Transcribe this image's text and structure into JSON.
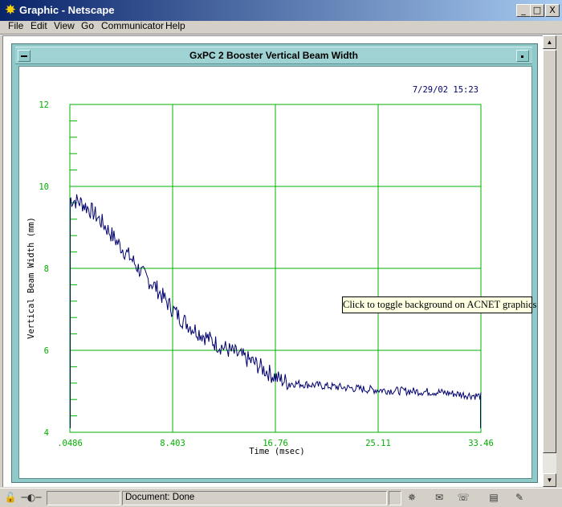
{
  "window": {
    "title": "Graphic - Netscape",
    "controls": {
      "minimize": "_",
      "maximize": "□",
      "close": "X"
    }
  },
  "menu": [
    "File",
    "Edit",
    "View",
    "Go",
    "Communicator",
    "Help"
  ],
  "graphic_window": {
    "title": "GxPC 2 Booster Vertical Beam Width",
    "timestamp": "7/29/02 15:23",
    "tooltip": "Click to toggle background on ACNET graphics"
  },
  "chart_data": {
    "type": "line",
    "title": "",
    "xlabel": "Time (msec)",
    "ylabel": "Vertical Beam Width (mm)",
    "xlim": [
      0.0486,
      33.46
    ],
    "ylim": [
      4,
      12
    ],
    "x_tick_labels": [
      ".0486",
      "8.403",
      "16.76",
      "25.11",
      "33.46"
    ],
    "y_tick_labels": [
      "12",
      "10",
      "8",
      "6",
      "4"
    ],
    "grid": true,
    "line_color": "#00006e",
    "grid_color": "#00b000",
    "series": [
      {
        "x": [
          0.0486,
          0.5,
          1.0,
          2.0,
          3.0,
          4.0,
          5.0,
          6.0,
          7.0,
          8.0,
          9.0,
          10.0,
          11.0,
          12.0,
          13.0,
          14.0,
          15.0,
          16.0,
          17.0,
          18.0,
          20.0,
          22.0,
          24.0,
          26.0,
          28.0,
          30.0,
          32.0,
          33.46
        ],
        "y": [
          9.7,
          9.65,
          9.6,
          9.35,
          9.0,
          8.6,
          8.25,
          7.85,
          7.55,
          7.15,
          6.8,
          6.55,
          6.35,
          6.15,
          6.0,
          5.85,
          5.7,
          5.5,
          5.3,
          5.2,
          5.15,
          5.1,
          5.05,
          5.02,
          5.0,
          4.98,
          4.92,
          4.88
        ]
      }
    ]
  },
  "status": {
    "text": "Document: Done"
  },
  "status_icons": [
    "security-lock-icon",
    "connection-icon",
    "navigator-icon",
    "mail-icon",
    "chat-icon",
    "composer-icon",
    "signature-icon"
  ]
}
